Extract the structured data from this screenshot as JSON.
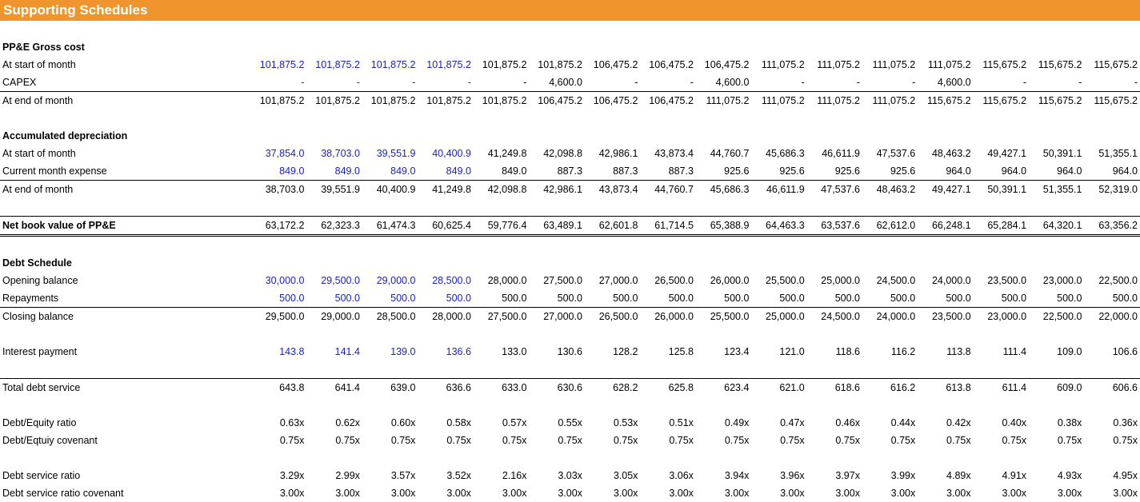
{
  "title": "Supporting Schedules",
  "colors": {
    "header_bg": "#f0952d",
    "input_blue": "#1a20c4"
  },
  "rows": [
    {
      "label": "PP&E Gross cost",
      "bold": true,
      "values": []
    },
    {
      "label": "At start of month",
      "inputs": 4,
      "values": [
        "101,875.2",
        "101,875.2",
        "101,875.2",
        "101,875.2",
        "101,875.2",
        "101,875.2",
        "106,475.2",
        "106,475.2",
        "106,475.2",
        "111,075.2",
        "111,075.2",
        "111,075.2",
        "111,075.2",
        "115,675.2",
        "115,675.2",
        "115,675.2"
      ]
    },
    {
      "label": "CAPEX",
      "inputs": 4,
      "values": [
        "-",
        "-",
        "-",
        "-",
        "-",
        "4,600.0",
        "-",
        "-",
        "4,600.0",
        "-",
        "-",
        "-",
        "4,600.0",
        "-",
        "-",
        "-"
      ]
    },
    {
      "label": "At end of month",
      "line": "top",
      "values": [
        "101,875.2",
        "101,875.2",
        "101,875.2",
        "101,875.2",
        "101,875.2",
        "106,475.2",
        "106,475.2",
        "106,475.2",
        "111,075.2",
        "111,075.2",
        "111,075.2",
        "111,075.2",
        "115,675.2",
        "115,675.2",
        "115,675.2",
        "115,675.2"
      ]
    },
    {
      "label": "",
      "values": []
    },
    {
      "label": "Accumulated depreciation",
      "bold": true,
      "values": []
    },
    {
      "label": "At start of month",
      "inputs": 4,
      "values": [
        "37,854.0",
        "38,703.0",
        "39,551.9",
        "40,400.9",
        "41,249.8",
        "42,098.8",
        "42,986.1",
        "43,873.4",
        "44,760.7",
        "45,686.3",
        "46,611.9",
        "47,537.6",
        "48,463.2",
        "49,427.1",
        "50,391.1",
        "51,355.1"
      ]
    },
    {
      "label": "Current month expense",
      "inputs": 4,
      "values": [
        "849.0",
        "849.0",
        "849.0",
        "849.0",
        "849.0",
        "887.3",
        "887.3",
        "887.3",
        "925.6",
        "925.6",
        "925.6",
        "925.6",
        "964.0",
        "964.0",
        "964.0",
        "964.0"
      ]
    },
    {
      "label": "At end of month",
      "line": "top",
      "values": [
        "38,703.0",
        "39,551.9",
        "40,400.9",
        "41,249.8",
        "42,098.8",
        "42,986.1",
        "43,873.4",
        "44,760.7",
        "45,686.3",
        "46,611.9",
        "47,537.6",
        "48,463.2",
        "49,427.1",
        "50,391.1",
        "51,355.1",
        "52,319.0"
      ]
    },
    {
      "label": "",
      "values": []
    },
    {
      "label": "Net book value of PP&E",
      "line": "nbv",
      "values": [
        "63,172.2",
        "62,323.3",
        "61,474.3",
        "60,625.4",
        "59,776.4",
        "63,489.1",
        "62,601.8",
        "61,714.5",
        "65,388.9",
        "64,463.3",
        "63,537.6",
        "62,612.0",
        "66,248.1",
        "65,284.1",
        "64,320.1",
        "63,356.2"
      ]
    },
    {
      "label": "",
      "values": []
    },
    {
      "label": "Debt Schedule",
      "bold": true,
      "values": []
    },
    {
      "label": "Opening balance",
      "inputs": 4,
      "values": [
        "30,000.0",
        "29,500.0",
        "29,000.0",
        "28,500.0",
        "28,000.0",
        "27,500.0",
        "27,000.0",
        "26,500.0",
        "26,000.0",
        "25,500.0",
        "25,000.0",
        "24,500.0",
        "24,000.0",
        "23,500.0",
        "23,000.0",
        "22,500.0"
      ]
    },
    {
      "label": "Repayments",
      "inputs": 4,
      "values": [
        "500.0",
        "500.0",
        "500.0",
        "500.0",
        "500.0",
        "500.0",
        "500.0",
        "500.0",
        "500.0",
        "500.0",
        "500.0",
        "500.0",
        "500.0",
        "500.0",
        "500.0",
        "500.0"
      ]
    },
    {
      "label": "Closing balance",
      "line": "top",
      "values": [
        "29,500.0",
        "29,000.0",
        "28,500.0",
        "28,000.0",
        "27,500.0",
        "27,000.0",
        "26,500.0",
        "26,000.0",
        "25,500.0",
        "25,000.0",
        "24,500.0",
        "24,000.0",
        "23,500.0",
        "23,000.0",
        "22,500.0",
        "22,000.0"
      ]
    },
    {
      "label": "",
      "values": []
    },
    {
      "label": "Interest payment",
      "inputs": 4,
      "values": [
        "143.8",
        "141.4",
        "139.0",
        "136.6",
        "133.0",
        "130.6",
        "128.2",
        "125.8",
        "123.4",
        "121.0",
        "118.6",
        "116.2",
        "113.8",
        "111.4",
        "109.0",
        "106.6"
      ]
    },
    {
      "label": "",
      "values": []
    },
    {
      "label": "Total debt service",
      "line": "top",
      "values": [
        "643.8",
        "641.4",
        "639.0",
        "636.6",
        "633.0",
        "630.6",
        "628.2",
        "625.8",
        "623.4",
        "621.0",
        "618.6",
        "616.2",
        "613.8",
        "611.4",
        "609.0",
        "606.6"
      ]
    },
    {
      "label": "",
      "values": []
    },
    {
      "label": "Debt/Equity ratio",
      "values": [
        "0.63x",
        "0.62x",
        "0.60x",
        "0.58x",
        "0.57x",
        "0.55x",
        "0.53x",
        "0.51x",
        "0.49x",
        "0.47x",
        "0.46x",
        "0.44x",
        "0.42x",
        "0.40x",
        "0.38x",
        "0.36x"
      ]
    },
    {
      "label": "Debt/Eqtuiy covenant",
      "values": [
        "0.75x",
        "0.75x",
        "0.75x",
        "0.75x",
        "0.75x",
        "0.75x",
        "0.75x",
        "0.75x",
        "0.75x",
        "0.75x",
        "0.75x",
        "0.75x",
        "0.75x",
        "0.75x",
        "0.75x",
        "0.75x"
      ]
    },
    {
      "label": "",
      "values": []
    },
    {
      "label": "Debt service ratio",
      "values": [
        "3.29x",
        "2.99x",
        "3.57x",
        "3.52x",
        "2.16x",
        "3.03x",
        "3.05x",
        "3.06x",
        "3.94x",
        "3.96x",
        "3.97x",
        "3.99x",
        "4.89x",
        "4.91x",
        "4.93x",
        "4.95x"
      ]
    },
    {
      "label": "Debt service ratio covenant",
      "values": [
        "3.00x",
        "3.00x",
        "3.00x",
        "3.00x",
        "3.00x",
        "3.00x",
        "3.00x",
        "3.00x",
        "3.00x",
        "3.00x",
        "3.00x",
        "3.00x",
        "3.00x",
        "3.00x",
        "3.00x",
        "3.00x"
      ]
    }
  ]
}
